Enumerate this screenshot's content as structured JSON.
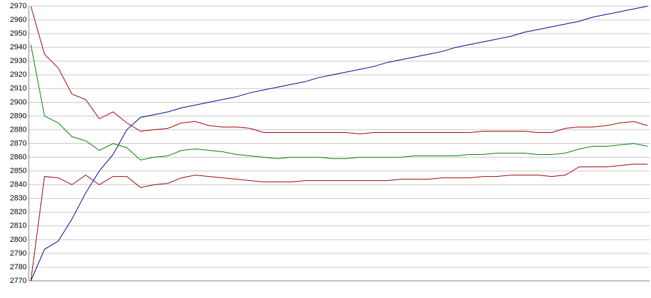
{
  "chart_data": {
    "type": "line",
    "ylim": [
      2770,
      2970
    ],
    "yticks": [
      2770,
      2780,
      2790,
      2800,
      2810,
      2820,
      2830,
      2840,
      2850,
      2860,
      2870,
      2880,
      2890,
      2900,
      2910,
      2920,
      2930,
      2940,
      2950,
      2960,
      2970
    ],
    "grid": true,
    "series": [
      {
        "color": "#00008b",
        "values": [
          2770,
          2793,
          2799,
          2815,
          2834,
          2850,
          2862,
          2880,
          2889,
          2891,
          2893,
          2896,
          2898,
          2900,
          2902,
          2904,
          2907,
          2909,
          2911,
          2913,
          2915,
          2918,
          2920,
          2922,
          2924,
          2926,
          2929,
          2931,
          2933,
          2935,
          2937,
          2940,
          2942,
          2944,
          2946,
          2948,
          2951,
          2953,
          2955,
          2957,
          2959,
          2962,
          2964,
          2966,
          2968,
          2970
        ]
      },
      {
        "color": "#a00000",
        "values": [
          2970,
          2935,
          2925,
          2906,
          2902,
          2888,
          2893,
          2885,
          2879,
          2880,
          2881,
          2885,
          2886,
          2883,
          2882,
          2882,
          2881,
          2878,
          2878,
          2878,
          2878,
          2878,
          2878,
          2878,
          2877,
          2878,
          2878,
          2878,
          2878,
          2878,
          2878,
          2878,
          2878,
          2879,
          2879,
          2879,
          2879,
          2878,
          2878,
          2881,
          2882,
          2882,
          2883,
          2885,
          2886,
          2883
        ]
      },
      {
        "color": "#008000",
        "values": [
          2942,
          2890,
          2885,
          2875,
          2872,
          2865,
          2870,
          2867,
          2858,
          2860,
          2861,
          2865,
          2866,
          2865,
          2864,
          2862,
          2861,
          2860,
          2859,
          2860,
          2860,
          2860,
          2859,
          2859,
          2860,
          2860,
          2860,
          2860,
          2861,
          2861,
          2861,
          2861,
          2862,
          2862,
          2863,
          2863,
          2863,
          2862,
          2862,
          2863,
          2866,
          2868,
          2868,
          2869,
          2870,
          2868
        ]
      },
      {
        "color": "#a00000",
        "values": [
          2770,
          2846,
          2845,
          2840,
          2847,
          2840,
          2846,
          2846,
          2838,
          2840,
          2841,
          2845,
          2847,
          2846,
          2845,
          2844,
          2843,
          2842,
          2842,
          2842,
          2843,
          2843,
          2843,
          2843,
          2843,
          2843,
          2843,
          2844,
          2844,
          2844,
          2845,
          2845,
          2845,
          2846,
          2846,
          2847,
          2847,
          2847,
          2846,
          2847,
          2853,
          2853,
          2853,
          2854,
          2855,
          2855
        ]
      }
    ]
  }
}
